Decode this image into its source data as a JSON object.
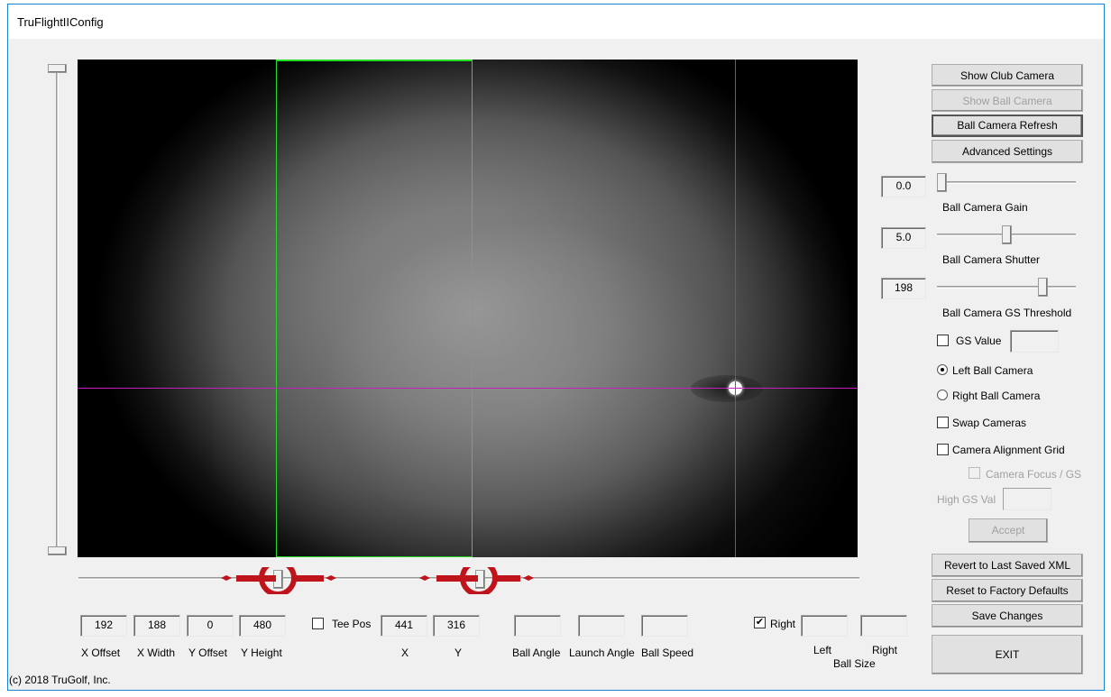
{
  "window": {
    "title": "TruFlightIIConfig"
  },
  "right_panel": {
    "show_club_camera": "Show Club Camera",
    "show_ball_camera": "Show Ball Camera",
    "ball_camera_refresh": "Ball Camera Refresh",
    "advanced_settings": "Advanced Settings",
    "gain": {
      "value": "0.0",
      "label": "Ball Camera Gain",
      "level": 0
    },
    "shutter": {
      "value": "5.0",
      "label": "Ball Camera Shutter",
      "level": 0.5
    },
    "threshold": {
      "value": "198",
      "label": "Ball Camera GS Threshold",
      "level": 0.78
    },
    "gs_value": {
      "label": "GS Value",
      "checked": false,
      "value": ""
    },
    "left_ball_camera": {
      "label": "Left Ball Camera",
      "selected": true
    },
    "right_ball_camera": {
      "label": "Right Ball Camera",
      "selected": false
    },
    "swap_cameras": {
      "label": "Swap Cameras",
      "checked": false
    },
    "camera_alignment_grid": {
      "label": "Camera Alignment Grid",
      "checked": false
    },
    "camera_focus_gs": {
      "label": "Camera Focus / GS",
      "checked": false
    },
    "high_gs_val": {
      "label": "High GS Val",
      "value": ""
    },
    "accept": "Accept",
    "revert": "Revert to Last Saved XML",
    "reset": "Reset to Factory Defaults",
    "save": "Save Changes",
    "exit": "EXIT"
  },
  "bottom": {
    "x_offset": {
      "value": "192",
      "label": "X Offset"
    },
    "x_width": {
      "value": "188",
      "label": "X Width"
    },
    "y_offset": {
      "value": "0",
      "label": "Y Offset"
    },
    "y_height": {
      "value": "480",
      "label": "Y Height"
    },
    "tee_pos": {
      "label": "Tee Pos",
      "checked": false
    },
    "x": {
      "value": "441",
      "label": "X"
    },
    "y": {
      "value": "316",
      "label": "Y"
    },
    "ball_angle": {
      "value": "",
      "label": "Ball Angle"
    },
    "launch_angle": {
      "value": "",
      "label": "Launch Angle"
    },
    "ball_speed": {
      "value": "",
      "label": "Ball Speed"
    },
    "right_check": {
      "label": "Right",
      "checked": true
    },
    "ball_size_left": {
      "value": "",
      "label": "Left"
    },
    "ball_size_right": {
      "value": "",
      "label": "Right"
    },
    "ball_size_label": "Ball Size",
    "copyright": "(c) 2018  TruGolf, Inc."
  },
  "colors": {
    "roi": "#22dd22",
    "crosshair": "#c020c0",
    "annotation": "#c0141c"
  }
}
